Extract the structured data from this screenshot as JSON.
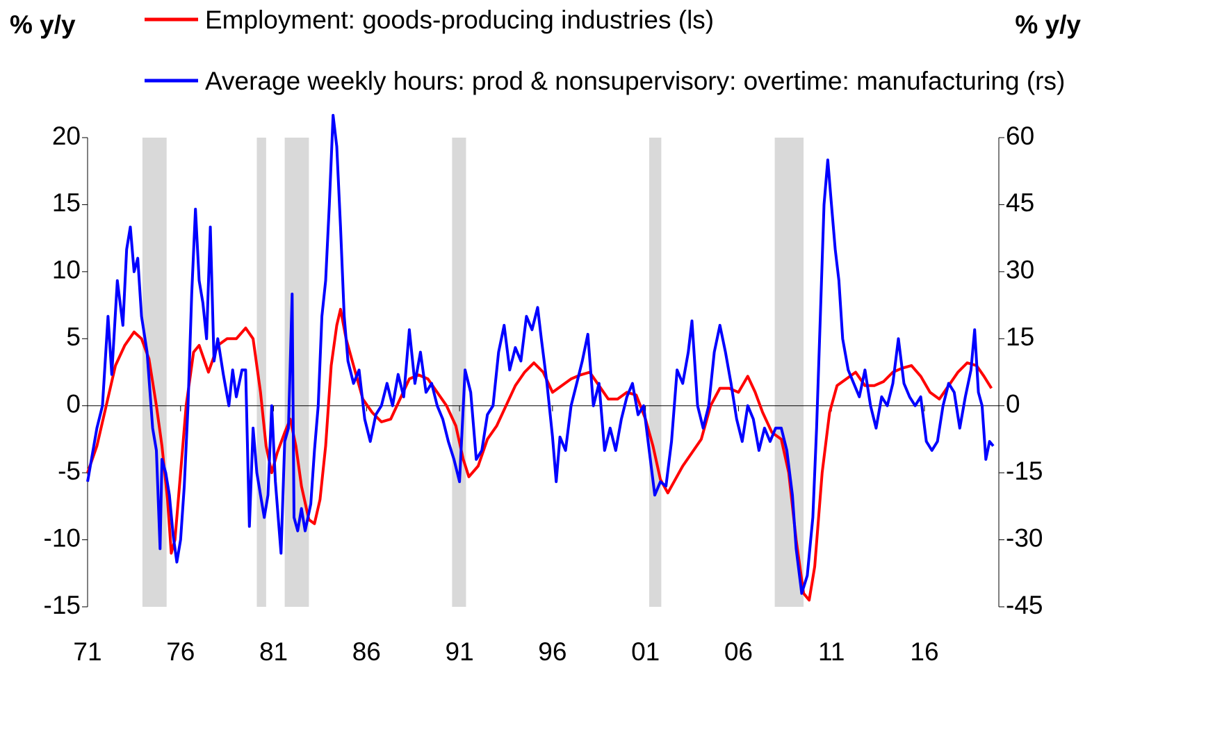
{
  "chart_data": {
    "type": "line",
    "ylabel": "% y/y",
    "y2label": "% y/y",
    "xlim": [
      1971,
      2020
    ],
    "xticks": [
      {
        "value": 1971,
        "label": "71"
      },
      {
        "value": 1976,
        "label": "76"
      },
      {
        "value": 1981,
        "label": "81"
      },
      {
        "value": 1986,
        "label": "86"
      },
      {
        "value": 1991,
        "label": "91"
      },
      {
        "value": 1996,
        "label": "96"
      },
      {
        "value": 2001,
        "label": "01"
      },
      {
        "value": 2006,
        "label": "06"
      },
      {
        "value": 2011,
        "label": "11"
      },
      {
        "value": 2016,
        "label": "16"
      }
    ],
    "ylim": [
      -15,
      20
    ],
    "yticks": [
      20,
      15,
      10,
      5,
      0,
      -5,
      -10,
      -15
    ],
    "y2lim": [
      -45,
      60
    ],
    "y2ticks": [
      60,
      45,
      30,
      15,
      0,
      -15,
      -30,
      -45
    ],
    "shading": [
      [
        1973.95,
        1975.25
      ],
      [
        1980.1,
        1980.6
      ],
      [
        1981.6,
        1982.9
      ],
      [
        1990.6,
        1991.35
      ],
      [
        2001.2,
        2001.85
      ],
      [
        2007.95,
        2009.5
      ]
    ],
    "shading_color": "#d9d9d9",
    "series": [
      {
        "name": "Employment: goods-producing industries (ls)",
        "color": "#ff0000",
        "axis": "y",
        "x": [
          1971.0,
          1971.5,
          1972.0,
          1972.5,
          1973.0,
          1973.5,
          1973.9,
          1974.3,
          1974.7,
          1975.0,
          1975.3,
          1975.5,
          1975.7,
          1976.0,
          1976.3,
          1976.7,
          1977.0,
          1977.5,
          1978.0,
          1978.5,
          1979.0,
          1979.5,
          1979.9,
          1980.3,
          1980.6,
          1980.9,
          1981.2,
          1981.6,
          1981.9,
          1982.2,
          1982.5,
          1982.9,
          1983.2,
          1983.5,
          1983.8,
          1984.1,
          1984.4,
          1984.6,
          1984.9,
          1985.3,
          1985.8,
          1986.3,
          1986.8,
          1987.3,
          1987.8,
          1988.3,
          1988.8,
          1989.3,
          1989.8,
          1990.3,
          1990.8,
          1991.2,
          1991.5,
          1992.0,
          1992.5,
          1993.0,
          1993.5,
          1994.0,
          1994.5,
          1995.0,
          1995.5,
          1996.0,
          1996.5,
          1997.0,
          1997.5,
          1998.0,
          1998.5,
          1999.0,
          1999.5,
          2000.0,
          2000.5,
          2001.0,
          2001.4,
          2001.8,
          2002.2,
          2002.6,
          2003.0,
          2003.5,
          2004.0,
          2004.5,
          2005.0,
          2005.5,
          2006.0,
          2006.5,
          2006.9,
          2007.3,
          2007.8,
          2008.3,
          2008.7,
          2009.1,
          2009.5,
          2009.8,
          2010.1,
          2010.5,
          2010.9,
          2011.3,
          2011.8,
          2012.3,
          2012.8,
          2013.3,
          2013.8,
          2014.3,
          2014.8,
          2015.3,
          2015.8,
          2016.3,
          2016.8,
          2017.3,
          2017.8,
          2018.3,
          2018.8,
          2019.2,
          2019.6
        ],
        "values": [
          -5,
          -3,
          0,
          3,
          4.5,
          5.5,
          5,
          3.5,
          0,
          -3,
          -7,
          -11,
          -10,
          -5,
          0,
          4,
          4.5,
          2.5,
          4.5,
          5,
          5,
          5.8,
          5,
          1,
          -3,
          -5,
          -3.5,
          -2,
          -1,
          -3,
          -6,
          -8.5,
          -8.8,
          -7,
          -3,
          3,
          6,
          7.2,
          5,
          3,
          0.5,
          -0.5,
          -1.2,
          -1,
          0.5,
          2,
          2.3,
          2,
          1,
          0,
          -1.5,
          -4,
          -5.3,
          -4.5,
          -2.5,
          -1.5,
          0,
          1.5,
          2.5,
          3.2,
          2.5,
          1,
          1.5,
          2,
          2.3,
          2.5,
          1.5,
          0.5,
          0.5,
          1,
          0.8,
          -1,
          -3,
          -5.5,
          -6.5,
          -5.5,
          -4.5,
          -3.5,
          -2.5,
          0,
          1.3,
          1.3,
          1,
          2.2,
          1,
          -0.5,
          -2,
          -2.5,
          -5,
          -10,
          -14,
          -14.5,
          -12,
          -5,
          -0.5,
          1.5,
          2,
          2.5,
          1.5,
          1.5,
          1.8,
          2.5,
          2.8,
          3,
          2.2,
          1,
          0.5,
          1.5,
          2.5,
          3.2,
          3,
          2.2,
          1.3
        ]
      },
      {
        "name": "Average weekly hours: prod & nonsupervisory: overtime: manufacturing (rs)",
        "color": "#0000ff",
        "axis": "y2",
        "x": [
          1971.0,
          1971.5,
          1971.8,
          1972.1,
          1972.3,
          1972.6,
          1972.9,
          1973.1,
          1973.3,
          1973.5,
          1973.7,
          1973.9,
          1974.2,
          1974.5,
          1974.7,
          1974.9,
          1975.0,
          1975.2,
          1975.4,
          1975.6,
          1975.8,
          1976.0,
          1976.2,
          1976.4,
          1976.6,
          1976.8,
          1977.0,
          1977.2,
          1977.4,
          1977.6,
          1977.8,
          1978.0,
          1978.3,
          1978.6,
          1978.8,
          1979.0,
          1979.3,
          1979.5,
          1979.7,
          1979.9,
          1980.1,
          1980.3,
          1980.5,
          1980.7,
          1980.9,
          1981.1,
          1981.4,
          1981.6,
          1981.8,
          1982.0,
          1982.1,
          1982.3,
          1982.5,
          1982.7,
          1983.0,
          1983.2,
          1983.4,
          1983.6,
          1983.8,
          1984.0,
          1984.2,
          1984.4,
          1984.6,
          1984.8,
          1985.0,
          1985.3,
          1985.6,
          1985.9,
          1986.2,
          1986.5,
          1986.8,
          1987.1,
          1987.4,
          1987.7,
          1988.0,
          1988.3,
          1988.6,
          1988.9,
          1989.2,
          1989.5,
          1989.8,
          1990.1,
          1990.4,
          1990.7,
          1991.0,
          1991.3,
          1991.6,
          1991.9,
          1992.2,
          1992.5,
          1992.8,
          1993.1,
          1993.4,
          1993.7,
          1994.0,
          1994.3,
          1994.6,
          1994.9,
          1995.2,
          1995.4,
          1995.7,
          1996.0,
          1996.2,
          1996.4,
          1996.7,
          1997.0,
          1997.3,
          1997.6,
          1997.9,
          1998.2,
          1998.5,
          1998.8,
          1999.1,
          1999.4,
          1999.7,
          2000.0,
          2000.3,
          2000.6,
          2000.9,
          2001.2,
          2001.5,
          2001.8,
          2002.1,
          2002.4,
          2002.7,
          2003.0,
          2003.3,
          2003.5,
          2003.8,
          2004.1,
          2004.4,
          2004.7,
          2005.0,
          2005.3,
          2005.6,
          2005.9,
          2006.2,
          2006.5,
          2006.8,
          2007.1,
          2007.4,
          2007.7,
          2008.0,
          2008.3,
          2008.6,
          2008.9,
          2009.1,
          2009.4,
          2009.7,
          2010.0,
          2010.2,
          2010.4,
          2010.6,
          2010.8,
          2011.0,
          2011.2,
          2011.4,
          2011.6,
          2011.9,
          2012.2,
          2012.5,
          2012.8,
          2013.1,
          2013.4,
          2013.7,
          2014.0,
          2014.3,
          2014.6,
          2014.9,
          2015.2,
          2015.5,
          2015.8,
          2016.1,
          2016.4,
          2016.7,
          2017.0,
          2017.3,
          2017.6,
          2017.9,
          2018.2,
          2018.5,
          2018.7,
          2018.9,
          2019.1,
          2019.3,
          2019.5,
          2019.7
        ],
        "values": [
          -17,
          -5,
          0,
          20,
          7,
          28,
          18,
          35,
          40,
          30,
          33,
          20,
          12,
          -5,
          -10,
          -32,
          -12,
          -15,
          -20,
          -29,
          -35,
          -30,
          -18,
          0,
          25,
          44,
          28,
          23,
          15,
          40,
          10,
          15,
          7,
          0,
          8,
          2,
          8,
          8,
          -27,
          -5,
          -15,
          -20,
          -25,
          -20,
          0,
          -17,
          -33,
          -8,
          -5,
          25,
          -25,
          -28,
          -23,
          -28,
          -22,
          -10,
          0,
          20,
          28,
          45,
          65,
          58,
          40,
          20,
          10,
          5,
          8,
          -3,
          -8,
          -2,
          0,
          5,
          0,
          7,
          2,
          17,
          5,
          12,
          3,
          5,
          0,
          -3,
          -8,
          -12,
          -17,
          8,
          3,
          -12,
          -10,
          -2,
          0,
          12,
          18,
          8,
          13,
          10,
          20,
          17,
          22,
          15,
          5,
          -7,
          -17,
          -7,
          -10,
          0,
          5,
          10,
          16,
          0,
          5,
          -10,
          -5,
          -10,
          -3,
          2,
          5,
          -2,
          0,
          -10,
          -20,
          -17,
          -18,
          -8,
          8,
          5,
          12,
          19,
          0,
          -5,
          0,
          12,
          18,
          12,
          5,
          -3,
          -8,
          0,
          -3,
          -10,
          -5,
          -8,
          -5,
          -5,
          -10,
          -20,
          -32,
          -42,
          -38,
          -25,
          -5,
          20,
          45,
          55,
          45,
          35,
          28,
          15,
          8,
          5,
          2,
          8,
          0,
          -5,
          2,
          0,
          5,
          15,
          5,
          2,
          0,
          2,
          -8,
          -10,
          -8,
          0,
          5,
          3,
          -5,
          2,
          8,
          17,
          3,
          0,
          -12,
          -8,
          -9
        ]
      }
    ]
  }
}
